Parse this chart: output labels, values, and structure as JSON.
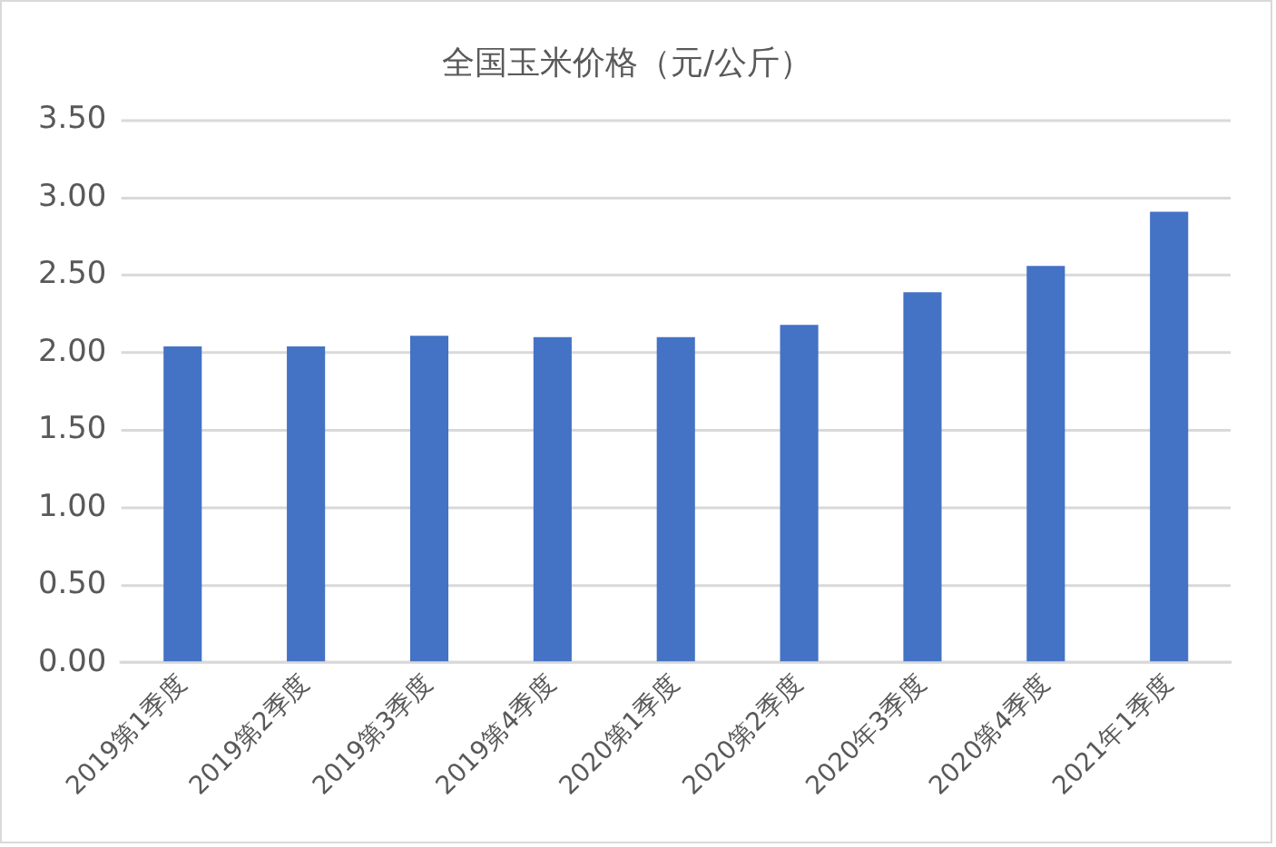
{
  "chart_data": {
    "type": "bar",
    "title": "全国玉米价格（元/公斤）",
    "categories": [
      "2019第1季度",
      "2019第2季度",
      "2019第3季度",
      "2019第4季度",
      "2020第1季度",
      "2020第2季度",
      "2020年3季度",
      "2020第4季度",
      "2021年1季度"
    ],
    "values": [
      2.04,
      2.04,
      2.11,
      2.1,
      2.1,
      2.18,
      2.39,
      2.56,
      2.91
    ],
    "color": "#4472c4",
    "ylim": [
      0,
      3.5
    ],
    "yticks": [
      {
        "value": 0,
        "label": "0.00"
      },
      {
        "value": 0.5,
        "label": "0.50"
      },
      {
        "value": 1,
        "label": "1.00"
      },
      {
        "value": 1.5,
        "label": "1.50"
      },
      {
        "value": 2,
        "label": "2.00"
      },
      {
        "value": 2.5,
        "label": "2.50"
      },
      {
        "value": 3,
        "label": "3.00"
      },
      {
        "value": 3.5,
        "label": "3.50"
      }
    ],
    "grid": "y"
  }
}
